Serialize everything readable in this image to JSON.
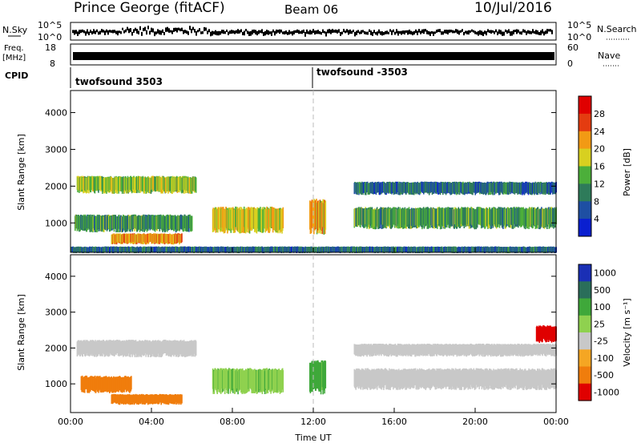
{
  "header": {
    "station": "Prince George (fitACF)",
    "beam": "Beam 06",
    "date": "10/Jul/2016"
  },
  "strip_nsky": {
    "left_label": "N.Sky",
    "ticks_left": [
      "10^5",
      "10^0"
    ],
    "ticks_right": [
      "10^5",
      "10^0"
    ],
    "right_label": "N.Search"
  },
  "strip_freq": {
    "left_label_1": "Freq.",
    "left_label_2": "[MHz]",
    "ticks_left": [
      "18",
      "8"
    ],
    "ticks_right": [
      "60",
      "0"
    ],
    "right_label": "Nave"
  },
  "strip_cpid": {
    "label": "CPID",
    "segments": [
      "twofsound 3503",
      "twofsound -3503"
    ]
  },
  "chart_data": [
    {
      "type": "heatmap",
      "name": "power",
      "ylabel": "Slant Range [km]",
      "yticks": [
        "1000",
        "2000",
        "3000",
        "4000"
      ],
      "ylim": [
        200,
        4600
      ],
      "xlim_hours": [
        0,
        24
      ],
      "colorbar_label": "Power [dB]",
      "colorbar_ticks": [
        "4",
        "8",
        "12",
        "16",
        "20",
        "24",
        "28"
      ],
      "colors": [
        "#0a1fd0",
        "#1e4fa3",
        "#2e7b5a",
        "#4caf3a",
        "#d8d020",
        "#f29a14",
        "#e43c10",
        "#e00000"
      ],
      "bands": [
        {
          "t0": 0.3,
          "t1": 6.2,
          "r0": 1850,
          "r1": 2250,
          "level": 16
        },
        {
          "t0": 0.2,
          "t1": 6.0,
          "r0": 800,
          "r1": 1200,
          "level": 12
        },
        {
          "t0": 2.0,
          "t1": 5.5,
          "r0": 450,
          "r1": 700,
          "level": 22
        },
        {
          "t0": 7.0,
          "t1": 10.5,
          "r0": 800,
          "r1": 1400,
          "level": 18
        },
        {
          "t0": 11.8,
          "t1": 12.6,
          "r0": 800,
          "r1": 1600,
          "level": 20
        },
        {
          "t0": 14.0,
          "t1": 24.0,
          "r0": 1800,
          "r1": 2100,
          "level": 8
        },
        {
          "t0": 14.0,
          "t1": 24.0,
          "r0": 900,
          "r1": 1400,
          "level": 12
        },
        {
          "t0": 0,
          "t1": 24,
          "r0": 200,
          "r1": 350,
          "level": 8
        }
      ]
    },
    {
      "type": "heatmap",
      "name": "velocity",
      "ylabel": "Slant Range [km]",
      "yticks": [
        "1000",
        "2000",
        "3000",
        "4000"
      ],
      "ylim": [
        200,
        4600
      ],
      "xlim_hours": [
        0,
        24
      ],
      "xticks": [
        "00:00",
        "04:00",
        "08:00",
        "12:00",
        "16:00",
        "20:00",
        "00:00"
      ],
      "xlabel": "Time UT",
      "colorbar_label": "Velocity [m s⁻¹]",
      "colorbar_ticks": [
        "1000",
        "500",
        "100",
        "25",
        "-25",
        "-100",
        "-500",
        "-1000"
      ],
      "colors": [
        "#1a2fb5",
        "#2a6e5a",
        "#3fa83a",
        "#8fd14f",
        "#c8c8c8",
        "#f5a623",
        "#f07d0c",
        "#e00000"
      ],
      "bands": [
        {
          "t0": 0.3,
          "t1": 6.2,
          "r0": 1800,
          "r1": 2200,
          "level": 0
        },
        {
          "t0": 2.0,
          "t1": 5.5,
          "r0": 450,
          "r1": 700,
          "level": -300
        },
        {
          "t0": 0.5,
          "t1": 3.0,
          "r0": 800,
          "r1": 1200,
          "level": -200
        },
        {
          "t0": 7.0,
          "t1": 10.5,
          "r0": 800,
          "r1": 1400,
          "level": 80
        },
        {
          "t0": 11.8,
          "t1": 12.6,
          "r0": 800,
          "r1": 1600,
          "level": 150
        },
        {
          "t0": 14.0,
          "t1": 24.0,
          "r0": 1800,
          "r1": 2100,
          "level": 0
        },
        {
          "t0": 14.0,
          "t1": 24.0,
          "r0": 900,
          "r1": 1400,
          "level": 0
        },
        {
          "t0": 23.0,
          "t1": 24.0,
          "r0": 2200,
          "r1": 2600,
          "level": -800
        }
      ]
    }
  ]
}
